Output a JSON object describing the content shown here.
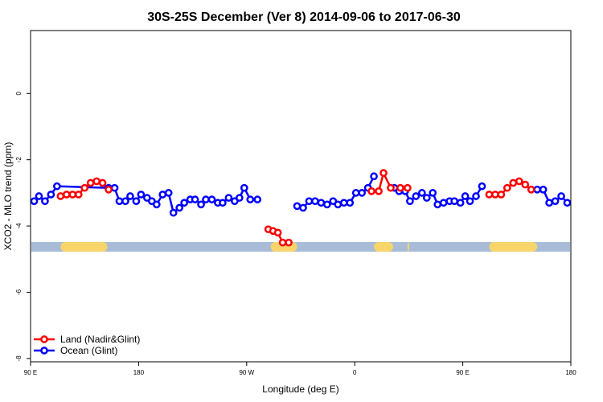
{
  "chart_data": {
    "type": "line",
    "title": "30S-25S December (Ver 8)   2014-09-06 to 2017-06-30",
    "xlabel": "Longitude (deg E)",
    "ylabel": "XCO2 - MLO trend (ppm)",
    "xlim": [
      90,
      540
    ],
    "ylim": [
      -8.1,
      1.9
    ],
    "x_ticks": [
      {
        "value": 90,
        "label": "90 E"
      },
      {
        "value": 180,
        "label": "180"
      },
      {
        "value": 270,
        "label": "90 W"
      },
      {
        "value": 360,
        "label": "0"
      },
      {
        "value": 450,
        "label": "90 E"
      },
      {
        "value": 540,
        "label": "180"
      }
    ],
    "y_ticks": [
      {
        "value": 0,
        "label": "0"
      },
      {
        "value": -2,
        "label": "-2"
      },
      {
        "value": -4,
        "label": "-4"
      },
      {
        "value": -6,
        "label": "-6"
      },
      {
        "value": -8,
        "label": "-8"
      }
    ],
    "grid": false,
    "legend_position": "bottom-left",
    "surface_band": {
      "y": -4.63,
      "ocean_color": "#a8bcd8",
      "land_color": "#f7d56a",
      "land_ranges": [
        [
          115,
          154
        ],
        [
          290,
          312
        ],
        [
          376,
          392
        ],
        [
          404,
          405
        ],
        [
          472,
          512
        ]
      ]
    },
    "series": [
      {
        "name": "Land (Nadir&Glint)",
        "color": "#ff0000",
        "segments": [
          [
            [
              115,
              -3.1
            ],
            [
              120,
              -3.05
            ],
            [
              125,
              -3.05
            ],
            [
              130,
              -3.05
            ],
            [
              135,
              -2.85
            ],
            [
              140,
              -2.7
            ],
            [
              145,
              -2.65
            ],
            [
              150,
              -2.7
            ],
            [
              155,
              -2.9
            ]
          ],
          [
            [
              288,
              -4.1
            ],
            [
              292,
              -4.15
            ],
            [
              296,
              -4.2
            ],
            [
              300,
              -4.5
            ],
            [
              305,
              -4.5
            ]
          ],
          [
            [
              374,
              -2.95
            ],
            [
              380,
              -2.95
            ],
            [
              384,
              -2.4
            ],
            [
              390,
              -2.85
            ],
            [
              398,
              -2.85
            ],
            [
              404,
              -2.85
            ]
          ],
          [
            [
              472,
              -3.05
            ],
            [
              477,
              -3.05
            ],
            [
              482,
              -3.05
            ],
            [
              487,
              -2.85
            ],
            [
              492,
              -2.7
            ],
            [
              497,
              -2.65
            ],
            [
              502,
              -2.75
            ],
            [
              507,
              -2.9
            ]
          ]
        ]
      },
      {
        "name": "Ocean (Glint)",
        "color": "#0000ff",
        "segments": [
          [
            [
              93,
              -3.25
            ],
            [
              97,
              -3.1
            ],
            [
              102,
              -3.25
            ],
            [
              107,
              -3.05
            ],
            [
              112,
              -2.8
            ],
            [
              155,
              -2.85
            ],
            [
              160,
              -2.85
            ],
            [
              164,
              -3.25
            ],
            [
              169,
              -3.25
            ],
            [
              173,
              -3.1
            ],
            [
              178,
              -3.25
            ],
            [
              182,
              -3.05
            ],
            [
              187,
              -3.15
            ],
            [
              191,
              -3.25
            ],
            [
              195,
              -3.35
            ],
            [
              200,
              -3.05
            ],
            [
              205,
              -3.0
            ],
            [
              209,
              -3.6
            ],
            [
              214,
              -3.45
            ],
            [
              218,
              -3.3
            ],
            [
              223,
              -3.2
            ],
            [
              227,
              -3.2
            ],
            [
              232,
              -3.35
            ],
            [
              236,
              -3.2
            ],
            [
              241,
              -3.2
            ],
            [
              246,
              -3.3
            ],
            [
              250,
              -3.3
            ],
            [
              255,
              -3.15
            ],
            [
              260,
              -3.25
            ],
            [
              264,
              -3.15
            ],
            [
              268,
              -2.85
            ],
            [
              273,
              -3.2
            ],
            [
              279,
              -3.2
            ]
          ],
          [
            [
              312,
              -3.4
            ],
            [
              317,
              -3.45
            ],
            [
              322,
              -3.25
            ],
            [
              327,
              -3.25
            ],
            [
              332,
              -3.3
            ],
            [
              337,
              -3.35
            ],
            [
              342,
              -3.25
            ],
            [
              346,
              -3.35
            ],
            [
              351,
              -3.3
            ],
            [
              356,
              -3.3
            ],
            [
              361,
              -3.0
            ],
            [
              366,
              -3.0
            ],
            [
              371,
              -2.85
            ],
            [
              376,
              -2.5
            ]
          ],
          [
            [
              393,
              -2.85
            ],
            [
              397,
              -2.95
            ],
            [
              402,
              -2.95
            ],
            [
              406,
              -3.25
            ],
            [
              411,
              -3.1
            ],
            [
              416,
              -3.0
            ],
            [
              420,
              -3.15
            ],
            [
              425,
              -3.0
            ],
            [
              429,
              -3.35
            ],
            [
              434,
              -3.3
            ],
            [
              439,
              -3.25
            ],
            [
              443,
              -3.25
            ],
            [
              448,
              -3.3
            ],
            [
              452,
              -3.1
            ],
            [
              456,
              -3.25
            ],
            [
              461,
              -3.1
            ],
            [
              466,
              -2.8
            ]
          ],
          [
            [
              512,
              -2.9
            ],
            [
              517,
              -2.9
            ],
            [
              522,
              -3.3
            ],
            [
              527,
              -3.25
            ],
            [
              532,
              -3.1
            ],
            [
              537,
              -3.3
            ]
          ]
        ]
      }
    ]
  }
}
